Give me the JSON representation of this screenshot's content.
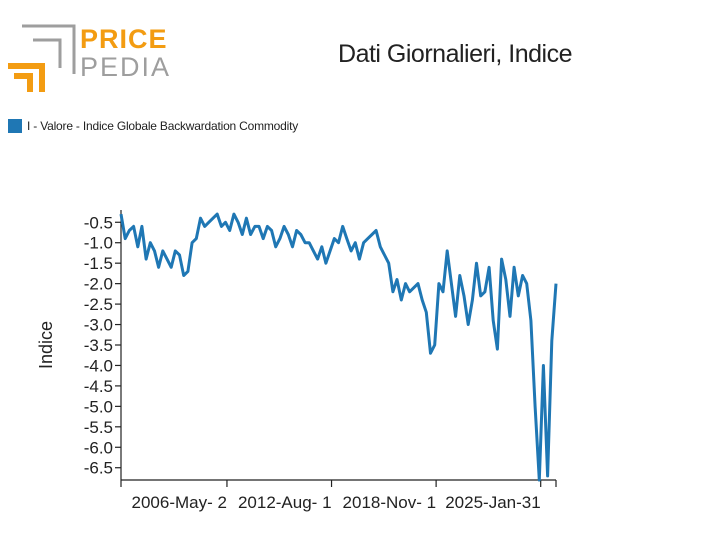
{
  "logo": {
    "word1": "PRICE",
    "word2": "PEDIA"
  },
  "colors": {
    "series": "#1f77b4",
    "logo_orange": "#f39c12",
    "logo_gray": "#9e9e9e"
  },
  "chart_data": {
    "type": "line",
    "title": "Dati Giornalieri, Indice",
    "ylabel": "Indice",
    "xlabel": "",
    "ylim": [
      -6.8,
      -0.2
    ],
    "yticks": [
      -0.5,
      -1.0,
      -1.5,
      -2.0,
      -2.5,
      -3.0,
      -3.5,
      -4.0,
      -4.5,
      -5.0,
      -5.5,
      -6.0,
      -6.5
    ],
    "ytick_labels": [
      "-0.5",
      "-1.0",
      "-1.5",
      "-2.0",
      "-2.5",
      "-3.0",
      "-3.5",
      "-4.0",
      "-4.5",
      "-5.0",
      "-5.5",
      "-6.0",
      "-6.5"
    ],
    "xlim": [
      "2000-01-01",
      "2025-12-31"
    ],
    "xticks": [
      "2000-01-01",
      "2006-05-02",
      "2012-08-01",
      "2018-11-01",
      "2025-01-31",
      "2025-12-31"
    ],
    "xtick_labels": [
      "",
      "2006-May- 2",
      "2012-Aug- 1",
      "2018-Nov- 1",
      "2025-Jan-31",
      ""
    ],
    "legend": {
      "position": "top-left"
    },
    "grid": false,
    "series": [
      {
        "name": "I - Valore - Indice Globale Backwardation Commodity",
        "x": [
          "2000-01-01",
          "2000-04-01",
          "2000-07-01",
          "2000-10-01",
          "2001-01-01",
          "2001-04-01",
          "2001-07-01",
          "2001-10-01",
          "2002-01-01",
          "2002-04-01",
          "2002-07-01",
          "2002-10-01",
          "2003-01-01",
          "2003-04-01",
          "2003-07-01",
          "2003-10-01",
          "2004-01-01",
          "2004-04-01",
          "2004-07-01",
          "2004-10-01",
          "2005-01-01",
          "2005-04-01",
          "2005-07-01",
          "2005-10-01",
          "2006-01-01",
          "2006-04-01",
          "2006-07-01",
          "2006-10-01",
          "2007-01-01",
          "2007-04-01",
          "2007-07-01",
          "2007-10-01",
          "2008-01-01",
          "2008-04-01",
          "2008-07-01",
          "2008-10-01",
          "2009-01-01",
          "2009-04-01",
          "2009-07-01",
          "2009-10-01",
          "2010-01-01",
          "2010-04-01",
          "2010-07-01",
          "2010-10-01",
          "2011-01-01",
          "2011-04-01",
          "2011-07-01",
          "2011-10-01",
          "2012-01-01",
          "2012-04-01",
          "2012-07-01",
          "2012-10-01",
          "2013-01-01",
          "2013-04-01",
          "2013-07-01",
          "2013-10-01",
          "2014-01-01",
          "2014-04-01",
          "2014-07-01",
          "2014-10-01",
          "2015-01-01",
          "2015-04-01",
          "2015-07-01",
          "2015-10-01",
          "2016-01-01",
          "2016-04-01",
          "2016-07-01",
          "2016-10-01",
          "2017-01-01",
          "2017-04-01",
          "2017-07-01",
          "2017-10-01",
          "2018-01-01",
          "2018-04-01",
          "2018-07-01",
          "2018-10-01",
          "2019-01-01",
          "2019-04-01",
          "2019-07-01",
          "2019-10-01",
          "2020-01-01",
          "2020-04-01",
          "2020-07-01",
          "2020-10-01",
          "2021-01-01",
          "2021-04-01",
          "2021-07-01",
          "2021-10-01",
          "2022-01-01",
          "2022-04-01",
          "2022-07-01",
          "2022-10-01",
          "2023-01-01",
          "2023-04-01",
          "2023-07-01",
          "2023-10-01",
          "2024-01-01",
          "2024-04-01",
          "2024-07-01",
          "2024-10-01",
          "2025-01-01",
          "2025-04-01",
          "2025-07-01",
          "2025-10-01",
          "2025-12-31"
        ],
        "values": [
          -0.3,
          -0.9,
          -0.7,
          -0.6,
          -1.1,
          -0.6,
          -1.4,
          -1.0,
          -1.2,
          -1.6,
          -1.2,
          -1.4,
          -1.6,
          -1.2,
          -1.3,
          -1.8,
          -1.7,
          -1.0,
          -0.9,
          -0.4,
          -0.6,
          -0.5,
          -0.4,
          -0.3,
          -0.6,
          -0.5,
          -0.7,
          -0.3,
          -0.5,
          -0.8,
          -0.4,
          -0.8,
          -0.6,
          -0.6,
          -0.9,
          -0.6,
          -0.7,
          -1.1,
          -0.9,
          -0.6,
          -0.8,
          -1.1,
          -0.7,
          -0.8,
          -1.0,
          -1.0,
          -1.2,
          -1.4,
          -1.1,
          -1.5,
          -1.2,
          -0.9,
          -1.0,
          -0.6,
          -0.9,
          -1.2,
          -1.0,
          -1.4,
          -1.0,
          -0.9,
          -0.8,
          -0.7,
          -1.1,
          -1.3,
          -1.5,
          -2.2,
          -1.9,
          -2.4,
          -2.0,
          -2.2,
          -2.1,
          -2.0,
          -2.4,
          -2.7,
          -3.7,
          -3.5,
          -2.0,
          -2.2,
          -1.2,
          -2.0,
          -2.8,
          -1.8,
          -2.3,
          -3.0,
          -2.4,
          -1.5,
          -2.3,
          -2.2,
          -1.6,
          -2.9,
          -3.6,
          -1.4,
          -1.9,
          -2.8,
          -1.6,
          -2.3,
          -1.8,
          -2.0,
          -2.9,
          -5.0,
          -6.8,
          -4.0,
          -6.7,
          -3.4,
          -2.0
        ]
      }
    ]
  }
}
